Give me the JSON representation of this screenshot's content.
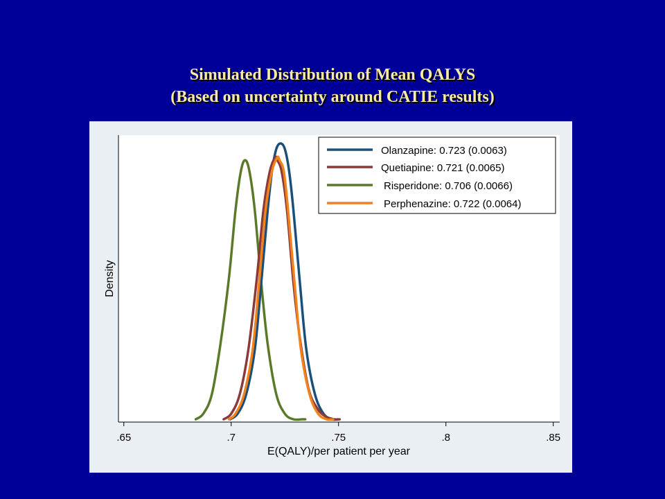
{
  "slide": {
    "title_line1": "Simulated Distribution of Mean QALYS",
    "title_line2": "(Based on uncertainty around CATIE results)"
  },
  "chart_data": {
    "type": "line",
    "title": "",
    "xlabel": "E(QALY)/per patient per year",
    "ylabel": "Density",
    "xlim": [
      0.6475,
      0.853
    ],
    "ylim": [
      0,
      1.03
    ],
    "x_ticks": [
      0.65,
      0.7,
      0.75,
      0.8,
      0.85
    ],
    "x_tick_labels": [
      ".65",
      ".7",
      ".75",
      ".8",
      ".85"
    ],
    "y_ticks_shown": false,
    "grid": false,
    "legend_position": "top-right",
    "series": [
      {
        "name": "Olanzapine: 0.723 (0.0063)",
        "color": "#1a4f7a",
        "mean": 0.723,
        "sd": 0.0063,
        "x": [
          0.6995,
          0.703,
          0.707,
          0.711,
          0.714,
          0.717,
          0.719,
          0.721,
          0.723,
          0.725,
          0.727,
          0.729,
          0.732,
          0.735,
          0.739,
          0.743,
          0.747,
          0.7495
        ],
        "y": [
          0.01,
          0.03,
          0.1,
          0.26,
          0.5,
          0.76,
          0.9,
          0.98,
          1.0,
          0.98,
          0.9,
          0.76,
          0.5,
          0.26,
          0.1,
          0.03,
          0.01,
          0.01
        ]
      },
      {
        "name": "Quetiapine: 0.721 (0.0065)",
        "color": "#8b3a3a",
        "mean": 0.721,
        "sd": 0.0065,
        "x": [
          0.6965,
          0.7,
          0.704,
          0.708,
          0.712,
          0.715,
          0.718,
          0.7205,
          0.7215,
          0.7235,
          0.726,
          0.729,
          0.732,
          0.736,
          0.74,
          0.744,
          0.748,
          0.7505
        ],
        "y": [
          0.01,
          0.03,
          0.1,
          0.26,
          0.52,
          0.76,
          0.9,
          0.95,
          0.94,
          0.9,
          0.76,
          0.5,
          0.3,
          0.12,
          0.05,
          0.02,
          0.01,
          0.01
        ]
      },
      {
        "name": "Risperidone: 0.706 (0.0066)",
        "color": "#5a7a2a",
        "mean": 0.706,
        "sd": 0.0066,
        "x": [
          0.6835,
          0.687,
          0.691,
          0.695,
          0.699,
          0.702,
          0.7045,
          0.7065,
          0.7085,
          0.711,
          0.714,
          0.717,
          0.721,
          0.725,
          0.729,
          0.733,
          0.7345
        ],
        "y": [
          0.01,
          0.03,
          0.1,
          0.28,
          0.52,
          0.76,
          0.9,
          0.94,
          0.9,
          0.76,
          0.5,
          0.28,
          0.1,
          0.03,
          0.01,
          0.01,
          0.01
        ]
      },
      {
        "name": "Perphenazine: 0.722 (0.0064)",
        "color": "#f0831e",
        "mean": 0.722,
        "sd": 0.0064,
        "x": [
          0.699,
          0.702,
          0.706,
          0.71,
          0.713,
          0.716,
          0.719,
          0.7215,
          0.7225,
          0.7245,
          0.7265,
          0.7295,
          0.7325,
          0.7365,
          0.7405,
          0.7445,
          0.7475
        ],
        "y": [
          0.01,
          0.03,
          0.1,
          0.26,
          0.5,
          0.76,
          0.9,
          0.95,
          0.94,
          0.9,
          0.76,
          0.5,
          0.26,
          0.1,
          0.03,
          0.01,
          0.01
        ]
      }
    ]
  }
}
